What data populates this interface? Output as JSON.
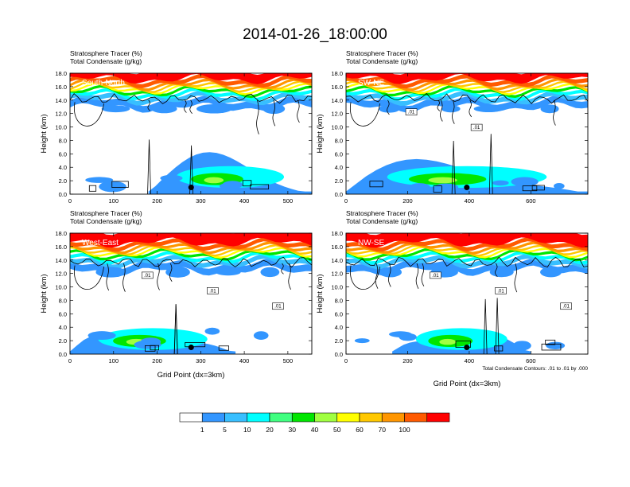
{
  "main_title": "2014-01-26_18:00:00",
  "panels": [
    {
      "subtitle_line1": "Stratosphere Tracer   (%)",
      "subtitle_line2": "Total Condensate   (g/kg)",
      "inset_label": "South-North",
      "ylabel": "Height (km)",
      "xlabel": "",
      "xticks": [
        "0",
        "100",
        "200",
        "300",
        "400",
        "500"
      ],
      "xmax": 555,
      "yticks": [
        "0.0",
        "2.0",
        "4.0",
        "6.0",
        "8.0",
        "10.0",
        "12.0",
        "14.0",
        "16.0",
        "18.0"
      ],
      "marker_x": 278,
      "contour_labels": [],
      "footnote": ""
    },
    {
      "subtitle_line1": "Stratosphere Tracer   (%)",
      "subtitle_line2": "Total Condensate   (g/kg)",
      "inset_label": "SW-NE",
      "ylabel": "Height (km)",
      "xlabel": "",
      "xticks": [
        "0",
        "200",
        "400",
        "600"
      ],
      "xmax": 785,
      "yticks": [
        "0.0",
        "2.0",
        "4.0",
        "6.0",
        "8.0",
        "10.0",
        "12.0",
        "14.0",
        "16.0",
        "18.0"
      ],
      "marker_x": 392,
      "contour_labels": [
        ".01",
        ".01"
      ],
      "footnote": ""
    },
    {
      "subtitle_line1": "Stratosphere Tracer   (%)",
      "subtitle_line2": "Total Condensate   (g/kg)",
      "inset_label": "West-East",
      "ylabel": "Height (km)",
      "xlabel": "Grid Point (dx=3km)",
      "xticks": [
        "0",
        "100",
        "200",
        "300",
        "400",
        "500"
      ],
      "xmax": 555,
      "yticks": [
        "0.0",
        "2.0",
        "4.0",
        "6.0",
        "8.0",
        "10.0",
        "12.0",
        "14.0",
        "16.0",
        "18.0"
      ],
      "marker_x": 278,
      "contour_labels": [
        ".01",
        ".01",
        ".01"
      ],
      "footnote": ""
    },
    {
      "subtitle_line1": "Stratosphere Tracer   (%)",
      "subtitle_line2": "Total Condensate   (g/kg)",
      "inset_label": "NW-SE",
      "ylabel": "Height (km)",
      "xlabel": "Grid Point (dx=3km)",
      "xticks": [
        "0",
        "200",
        "400",
        "600"
      ],
      "xmax": 785,
      "yticks": [
        "0.0",
        "2.0",
        "4.0",
        "6.0",
        "8.0",
        "10.0",
        "12.0",
        "14.0",
        "16.0",
        "18.0"
      ],
      "marker_x": 392,
      "contour_labels": [
        ".01",
        ".01",
        ".01"
      ],
      "footnote": "Total Condensate Contours: .01 to .01 by .000"
    }
  ],
  "colorbar": {
    "labels": [
      "1",
      "5",
      "10",
      "20",
      "30",
      "40",
      "50",
      "60",
      "70",
      "100"
    ],
    "colors": [
      "#ffffff",
      "#3396ff",
      "#38bfff",
      "#00ffff",
      "#40ff80",
      "#00e600",
      "#a0ff40",
      "#ffff00",
      "#ffc800",
      "#ff9600",
      "#ff5a00",
      "#ff0000"
    ]
  },
  "chart_data": [
    {
      "type": "heatmap",
      "title": "South-North",
      "xlabel": "",
      "ylabel": "Height (km)",
      "xlim": [
        0,
        555
      ],
      "ylim": [
        0,
        18
      ],
      "contour_level": 0.01,
      "features": [
        {
          "name": "tropopause_tracer_band",
          "x": [
            0,
            555
          ],
          "z_km": [
            14.5,
            18
          ],
          "tracer_pct_top": 100
        },
        {
          "name": "low_level_tracer_blob",
          "x": [
            180,
            555
          ],
          "z_km": [
            0,
            8
          ],
          "tracer_pct_max": 30
        },
        {
          "name": "marker",
          "x": 278,
          "z_km": 1.0
        }
      ]
    },
    {
      "type": "heatmap",
      "title": "SW-NE",
      "xlabel": "",
      "ylabel": "Height (km)",
      "xlim": [
        0,
        785
      ],
      "ylim": [
        0,
        18
      ],
      "contour_level": 0.01,
      "features": [
        {
          "name": "tropopause_tracer_band",
          "x": [
            0,
            785
          ],
          "z_km": [
            14.5,
            18
          ],
          "tracer_pct_top": 100
        },
        {
          "name": "low_level_tracer_blob",
          "x": [
            0,
            785
          ],
          "z_km": [
            0,
            8
          ],
          "tracer_pct_max": 30
        },
        {
          "name": "marker",
          "x": 392,
          "z_km": 1.0
        }
      ]
    },
    {
      "type": "heatmap",
      "title": "West-East",
      "xlabel": "Grid Point (dx=3km)",
      "ylabel": "Height (km)",
      "xlim": [
        0,
        555
      ],
      "ylim": [
        0,
        18
      ],
      "contour_level": 0.01,
      "features": [
        {
          "name": "tropopause_tracer_band",
          "x": [
            0,
            555
          ],
          "z_km": [
            14,
            18
          ],
          "tracer_pct_top": 100
        },
        {
          "name": "low_level_tracer_blob",
          "x": [
            0,
            380
          ],
          "z_km": [
            0,
            7
          ],
          "tracer_pct_max": 30
        },
        {
          "name": "marker",
          "x": 278,
          "z_km": 1.0
        }
      ]
    },
    {
      "type": "heatmap",
      "title": "NW-SE",
      "xlabel": "Grid Point (dx=3km)",
      "ylabel": "Height (km)",
      "xlim": [
        0,
        785
      ],
      "ylim": [
        0,
        18
      ],
      "contour_level": 0.01,
      "features": [
        {
          "name": "tropopause_tracer_band",
          "x": [
            0,
            785
          ],
          "z_km": [
            14,
            18
          ],
          "tracer_pct_top": 100
        },
        {
          "name": "low_level_tracer_blob",
          "x": [
            150,
            600
          ],
          "z_km": [
            0,
            7
          ],
          "tracer_pct_max": 30
        },
        {
          "name": "marker",
          "x": 392,
          "z_km": 1.0
        }
      ]
    }
  ]
}
